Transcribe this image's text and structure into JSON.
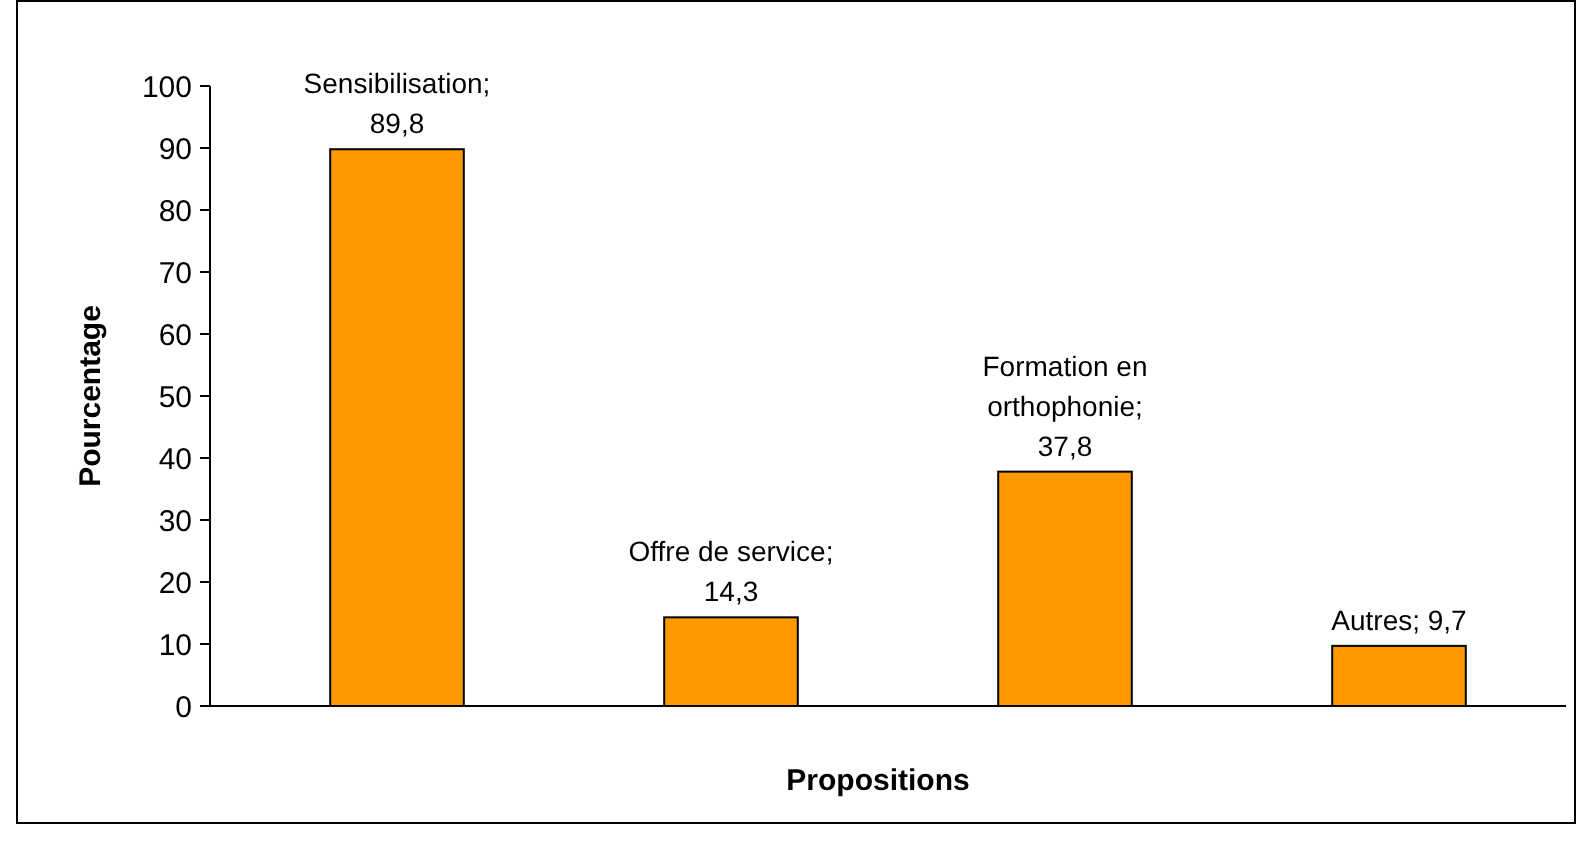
{
  "chart_data": {
    "type": "bar",
    "xlabel": "Propositions",
    "ylabel": "Pourcentage",
    "categories": [
      null,
      null,
      null,
      null
    ],
    "values": [
      89.8,
      14.3,
      37.8,
      9.7
    ],
    "value_labels": [
      "Sensibilisation; 89,8",
      "Offre de service; 14,3",
      "Formation en orthophonie; 37,8",
      "Autres; 9,7"
    ],
    "color": "#ff9900",
    "ylim": [
      0,
      100
    ],
    "yticks": [
      0,
      10,
      20,
      30,
      40,
      50,
      60,
      70,
      80,
      90,
      100
    ],
    "grid": false
  }
}
